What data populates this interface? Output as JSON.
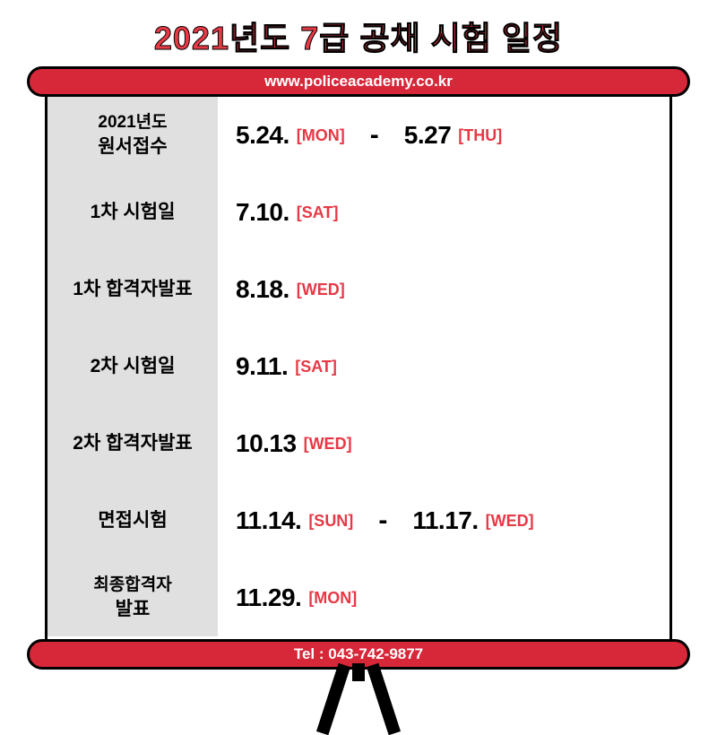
{
  "colors": {
    "accent": "#e63946",
    "bar": "#d62839",
    "border": "#000000",
    "label_bg": "#e0e0e0",
    "text": "#000000",
    "white": "#ffffff"
  },
  "typography": {
    "title_fontsize": 36,
    "date_fontsize": 28,
    "label_fontsize": 21,
    "day_fontsize": 18,
    "url_fontsize": 17
  },
  "title": "2021년도 7급 공채 시험 일정",
  "url": "www.policeacademy.co.kr",
  "tel": "Tel : 043-742-9877",
  "schedule": [
    {
      "label_line1": "2021년도",
      "label_line2": "원서접수",
      "has_two_lines": true,
      "date1": "5.24.",
      "day1": "[MON]",
      "has_range": true,
      "date2": "5.27",
      "day2": "[THU]"
    },
    {
      "label_line1": "1차 시험일",
      "has_two_lines": false,
      "date1": "7.10.",
      "day1": "[SAT]",
      "has_range": false
    },
    {
      "label_line1": "1차 합격자발표",
      "has_two_lines": false,
      "date1": "8.18.",
      "day1": "[WED]",
      "has_range": false
    },
    {
      "label_line1": "2차 시험일",
      "has_two_lines": false,
      "date1": "9.11.",
      "day1": "[SAT]",
      "has_range": false
    },
    {
      "label_line1": "2차 합격자발표",
      "has_two_lines": false,
      "date1": "10.13",
      "day1": "[WED]",
      "has_range": false
    },
    {
      "label_line1": "면접시험",
      "has_two_lines": false,
      "date1": "11.14.",
      "day1": "[SUN]",
      "has_range": true,
      "date2": "11.17.",
      "day2": "[WED]"
    },
    {
      "label_line1": "최종합격자",
      "label_line2": "발표",
      "has_two_lines": true,
      "date1": "11.29.",
      "day1": "[MON]",
      "has_range": false
    }
  ]
}
